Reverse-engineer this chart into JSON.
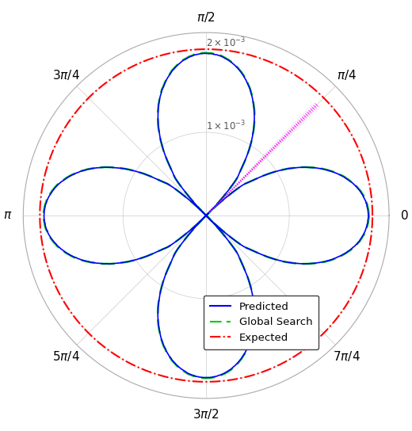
{
  "rmax": 0.0022,
  "rticks": [
    0.001,
    0.002
  ],
  "expected_r": 0.002,
  "background": "#ffffff",
  "line_colors": {
    "predicted": "#0000ff",
    "global_search": "#00cc00",
    "expected": "#ff0000",
    "magenta_dots": "#ff00ff",
    "gray_dots": "#999999"
  },
  "legend": {
    "predicted": "Predicted",
    "global_search": "Global Search",
    "expected": "Expected"
  },
  "angle_labels_deg": [
    0,
    45,
    90,
    135,
    180,
    225,
    270,
    315
  ],
  "angle_label_texts": [
    "$0$",
    "$\\pi/4$",
    "$\\pi/2$",
    "$3\\pi/4$",
    "$\\pi$",
    "$5\\pi/4$",
    "$3\\pi/2$",
    "$7\\pi/4$"
  ]
}
